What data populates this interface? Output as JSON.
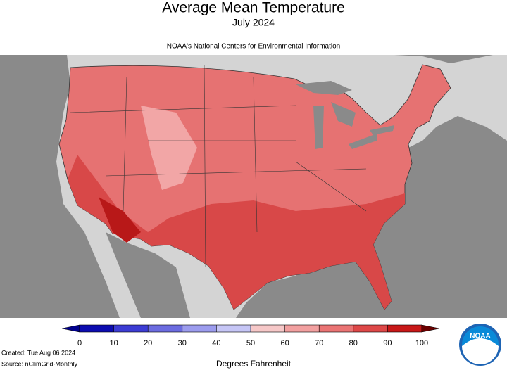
{
  "header": {
    "title": "Average Mean Temperature",
    "subtitle": "July 2024",
    "agency": "NOAA's National Centers for Environmental Information"
  },
  "colorbar": {
    "ticks": [
      0,
      10,
      20,
      30,
      40,
      50,
      60,
      70,
      80,
      90,
      100
    ],
    "colors": [
      "#0c0cb0",
      "#3c3cd4",
      "#6c6ce0",
      "#9c9cee",
      "#c6c6f6",
      "#f6c8c8",
      "#f2a0a0",
      "#ea7474",
      "#de4848",
      "#c81818"
    ],
    "under_color": "#00008c",
    "over_color": "#6a0000",
    "label": "Degrees Fahrenheit"
  },
  "footer": {
    "created": "Created: Tue Aug 06 2024",
    "source": "Source: nClimGrid-Monthly"
  },
  "logo": "NOAA"
}
